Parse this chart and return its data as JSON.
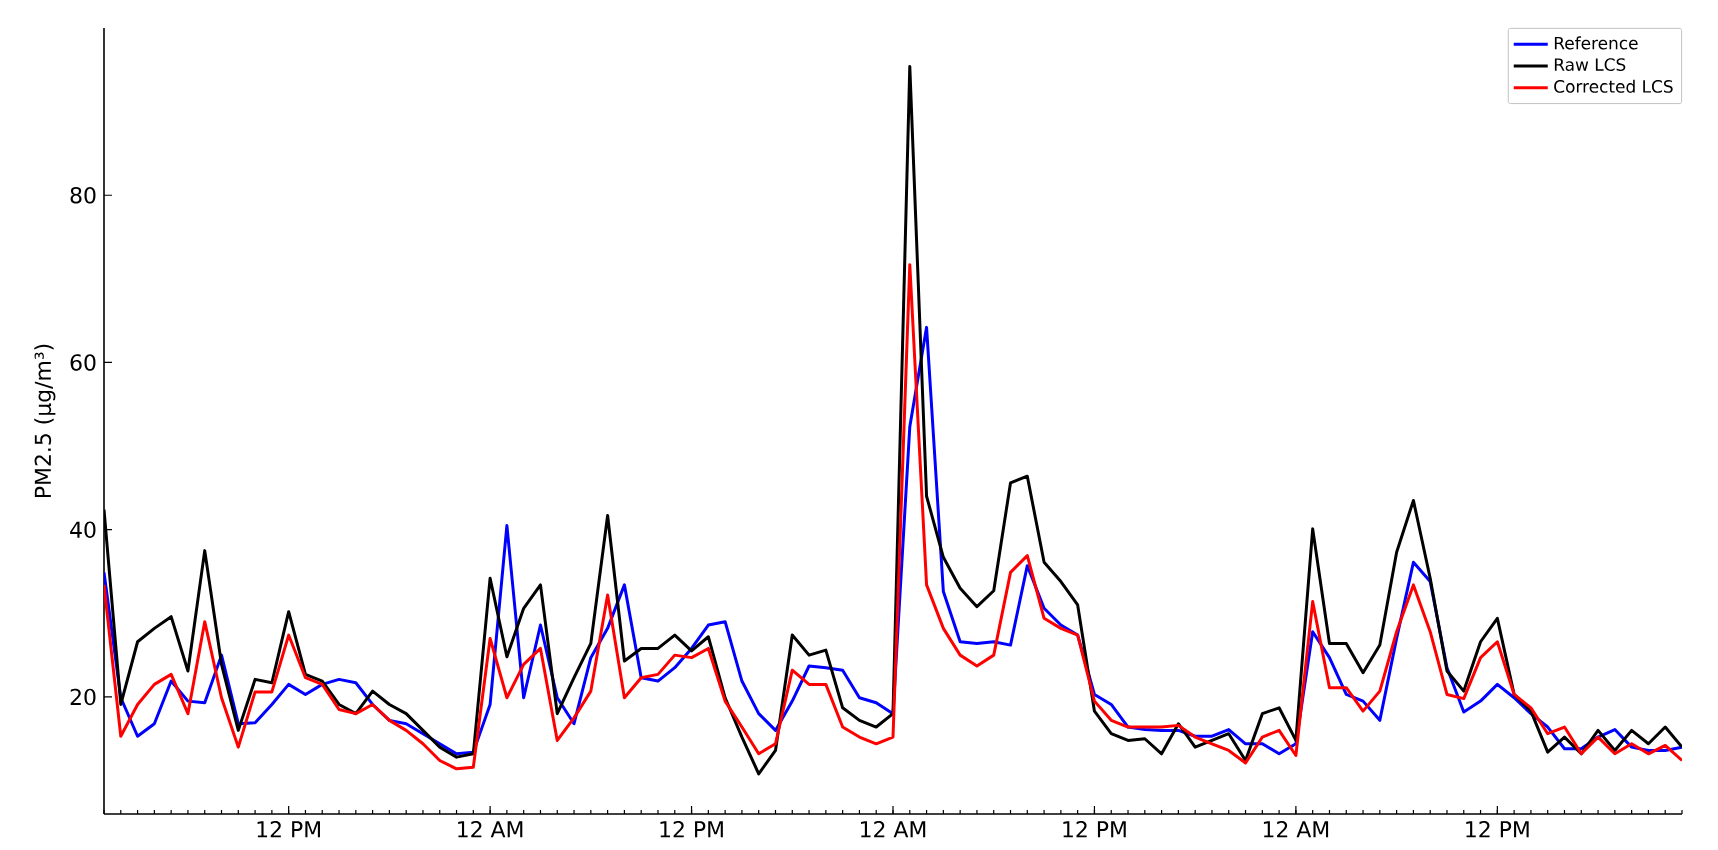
{
  "chart_data": {
    "type": "line",
    "ylabel": "PM2.5 (μg/m³)",
    "categories": [
      null,
      null,
      null,
      null,
      null,
      null,
      null,
      null,
      null,
      null,
      null,
      "12 PM",
      null,
      null,
      null,
      null,
      null,
      null,
      null,
      null,
      null,
      null,
      null,
      "12 AM",
      null,
      null,
      null,
      null,
      null,
      null,
      null,
      null,
      null,
      null,
      null,
      "12 PM",
      null,
      null,
      null,
      null,
      null,
      null,
      null,
      null,
      null,
      null,
      null,
      "12 AM",
      null,
      null,
      null,
      null,
      null,
      null,
      null,
      null,
      null,
      null,
      null,
      "12 PM",
      null,
      null,
      null,
      null,
      null,
      null,
      null,
      null,
      null,
      null,
      null,
      "12 AM",
      null,
      null,
      null,
      null,
      null,
      null,
      null,
      null,
      null,
      null,
      null,
      "12 PM",
      null,
      null,
      null,
      null,
      null,
      null,
      null,
      null,
      null,
      null,
      null
    ],
    "series": [
      {
        "name": "Reference",
        "color": "#0000ff",
        "values": [
          34.9,
          19.9,
          15.3,
          16.8,
          21.9,
          19.5,
          19.3,
          25,
          16.8,
          16.9,
          19.1,
          21.5,
          20.3,
          21.5,
          22.1,
          21.7,
          19.1,
          17.2,
          16.8,
          15.6,
          14.4,
          13.2,
          13.4,
          19.1,
          40.5,
          19.9,
          28.6,
          19.9,
          16.8,
          24.7,
          28.2,
          33.4,
          22.3,
          21.9,
          23.5,
          25.8,
          28.6,
          29,
          21.9,
          18,
          16,
          19.5,
          23.7,
          23.5,
          23.2,
          19.9,
          19.3,
          18,
          52.3,
          64.2,
          32.6,
          26.6,
          26.4,
          26.6,
          26.2,
          35.7,
          30.6,
          28.6,
          27.4,
          20.3,
          19.1,
          16.4,
          16.1,
          16,
          16,
          15.3,
          15.3,
          16.1,
          14.4,
          14.4,
          13.2,
          14.4,
          27.8,
          24.7,
          20.3,
          19.5,
          17.2,
          27,
          36.1,
          33.8,
          23.5,
          18.2,
          19.5,
          21.5,
          19.9,
          18,
          16.4,
          13.8,
          13.8,
          15.2,
          16.1,
          14,
          13.6,
          13.6,
          14
        ]
      },
      {
        "name": "Raw LCS",
        "color": "#000000",
        "values": [
          42.4,
          19.1,
          26.6,
          28.2,
          29.6,
          23.1,
          37.5,
          23.9,
          16,
          22.1,
          21.7,
          30.2,
          22.7,
          21.9,
          19.1,
          18,
          20.7,
          19.1,
          18,
          16,
          14,
          12.8,
          13.2,
          34.2,
          24.8,
          30.6,
          33.4,
          18,
          22.3,
          26.4,
          41.7,
          24.3,
          25.8,
          25.8,
          27.4,
          25.5,
          27.2,
          19.9,
          15.2,
          10.8,
          13.6,
          27.4,
          25,
          25.6,
          18.7,
          17.2,
          16.4,
          18,
          95.4,
          44,
          36.7,
          33,
          30.8,
          32.7,
          45.6,
          46.4,
          36.1,
          33.8,
          31,
          18.3,
          15.6,
          14.8,
          15,
          13.2,
          16.8,
          14,
          14.8,
          15.6,
          12.4,
          18,
          18.7,
          14.8,
          40.1,
          26.4,
          26.4,
          22.9,
          26.2,
          37.3,
          43.5,
          34.2,
          23.1,
          20.7,
          26.6,
          29.4,
          20.3,
          18.3,
          13.4,
          15.2,
          13.2,
          16,
          13.6,
          16,
          14.4,
          16.4,
          14
        ]
      },
      {
        "name": "Corrected LCS",
        "color": "#ff0000",
        "values": [
          33.4,
          15.3,
          19.1,
          21.5,
          22.7,
          18,
          29,
          19.9,
          14,
          20.6,
          20.6,
          27.4,
          22.3,
          21.5,
          18.5,
          18,
          19.1,
          17.2,
          16,
          14.4,
          12.4,
          11.4,
          11.6,
          27,
          19.9,
          23.9,
          25.8,
          14.8,
          17.5,
          20.7,
          32.2,
          19.9,
          22.3,
          22.7,
          25,
          24.7,
          25.8,
          19.5,
          16.4,
          13.2,
          14.4,
          23.2,
          21.5,
          21.5,
          16.4,
          15.2,
          14.4,
          15.2,
          71.7,
          33.4,
          28.2,
          25,
          23.7,
          25,
          34.9,
          36.9,
          29.4,
          28.2,
          27.4,
          19.5,
          17.2,
          16.4,
          16.4,
          16.4,
          16.6,
          15.2,
          14.4,
          13.6,
          12.1,
          15.2,
          16,
          13,
          31.4,
          21.1,
          21.1,
          18.3,
          20.7,
          27.8,
          33.4,
          27.8,
          20.3,
          19.8,
          24.7,
          26.6,
          20.3,
          18.7,
          15.6,
          16.4,
          13.2,
          15.2,
          13.2,
          14.4,
          13.2,
          14.2,
          12.4
        ]
      }
    ],
    "ylim": [
      6,
      100
    ],
    "yticks": [
      20,
      40,
      60,
      80
    ],
    "legend": "top right",
    "grid": false,
    "marker": "none",
    "line_style": "solid"
  }
}
